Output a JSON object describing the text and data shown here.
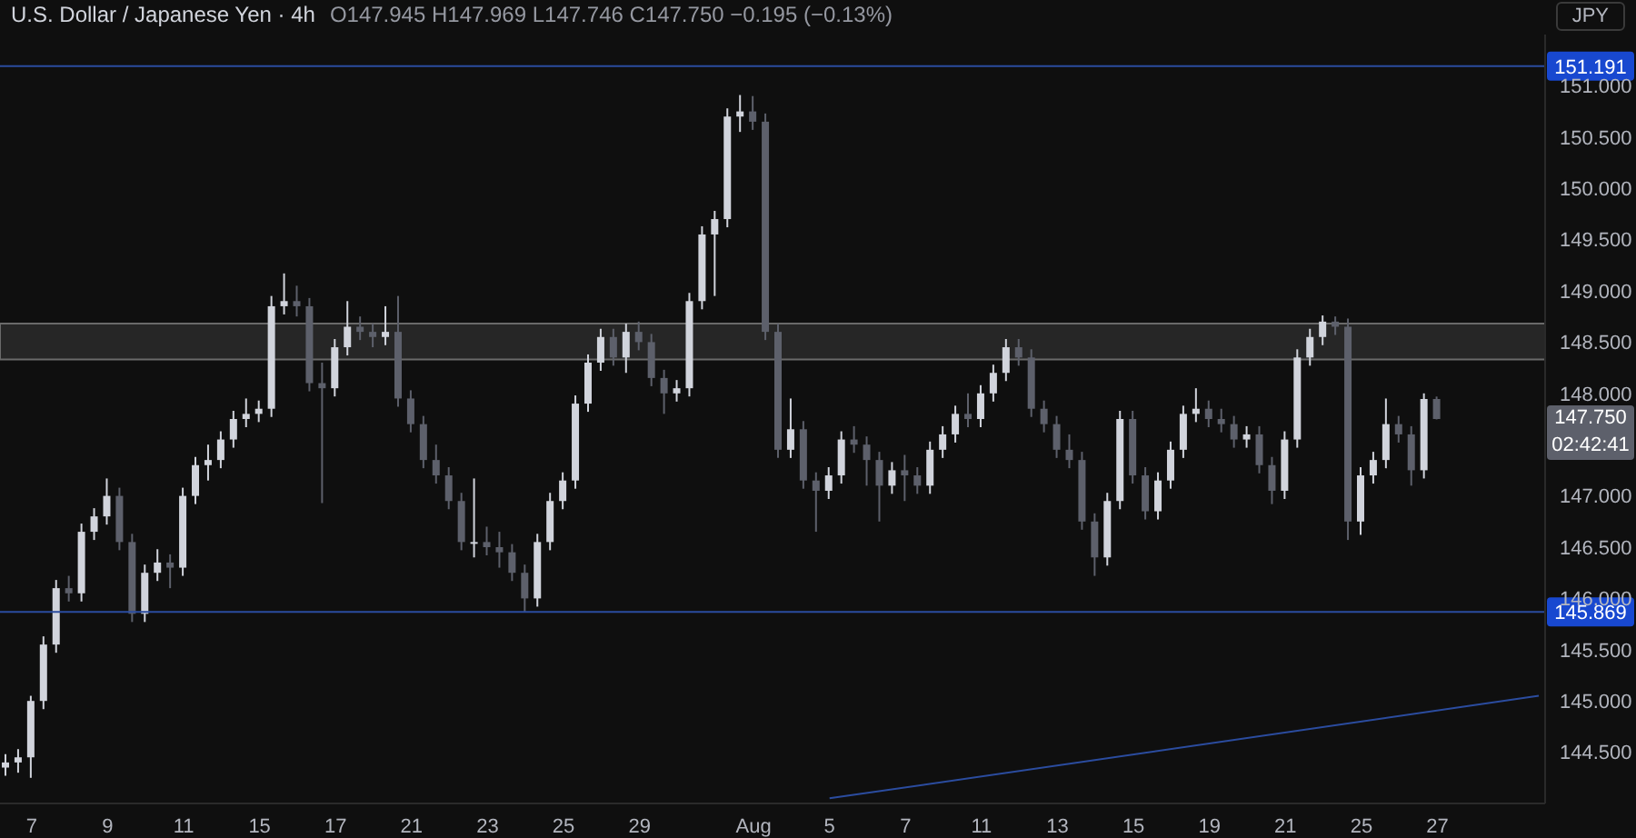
{
  "chart_data": {
    "type": "candlestick",
    "title": "U.S. Dollar / Japanese Yen · 4h",
    "subtitle": "O147.945 H147.969 L147.746 C147.750 −0.195 (−0.13%)",
    "categories": [
      null,
      null,
      "7",
      null,
      null,
      null,
      null,
      null,
      "9",
      null,
      null,
      null,
      null,
      null,
      "11",
      null,
      null,
      null,
      null,
      null,
      "15",
      null,
      null,
      null,
      null,
      null,
      "17",
      null,
      null,
      null,
      null,
      null,
      "21",
      null,
      null,
      null,
      null,
      null,
      "23",
      null,
      null,
      null,
      null,
      null,
      "25",
      null,
      null,
      null,
      null,
      null,
      "29",
      null,
      null,
      null,
      null,
      null,
      null,
      null,
      null,
      "Aug",
      null,
      null,
      null,
      null,
      null,
      "5",
      null,
      null,
      null,
      null,
      null,
      "7",
      null,
      null,
      null,
      null,
      null,
      "11",
      null,
      null,
      null,
      null,
      null,
      "13",
      null,
      null,
      null,
      null,
      null,
      "15",
      null,
      null,
      null,
      null,
      null,
      "19",
      null,
      null,
      null,
      null,
      null,
      "21",
      null,
      null,
      null,
      null,
      null,
      "25",
      null,
      null,
      null,
      null,
      null,
      "27",
      null,
      null,
      null,
      null,
      null,
      null,
      null,
      null
    ],
    "ohlc": [
      [
        144.35,
        144.48,
        144.27,
        144.4
      ],
      [
        144.4,
        144.53,
        144.3,
        144.45
      ],
      [
        144.45,
        145.05,
        144.25,
        145.0
      ],
      [
        145.0,
        145.63,
        144.92,
        145.55
      ],
      [
        145.55,
        146.18,
        145.47,
        146.1
      ],
      [
        146.1,
        146.22,
        145.97,
        146.05
      ],
      [
        146.05,
        146.73,
        145.97,
        146.65
      ],
      [
        146.65,
        146.88,
        146.57,
        146.8
      ],
      [
        146.8,
        147.17,
        146.72,
        147.0
      ],
      [
        147.0,
        147.08,
        146.47,
        146.55
      ],
      [
        146.55,
        146.63,
        145.77,
        145.85
      ],
      [
        145.85,
        146.33,
        145.77,
        146.25
      ],
      [
        146.25,
        146.48,
        146.17,
        146.35
      ],
      [
        146.35,
        146.43,
        146.1,
        146.3
      ],
      [
        146.3,
        147.08,
        146.22,
        147.0
      ],
      [
        147.0,
        147.38,
        146.92,
        147.3
      ],
      [
        147.3,
        147.5,
        147.15,
        147.35
      ],
      [
        147.35,
        147.63,
        147.27,
        147.55
      ],
      [
        147.55,
        147.83,
        147.47,
        147.75
      ],
      [
        147.75,
        147.95,
        147.67,
        147.8
      ],
      [
        147.8,
        147.93,
        147.72,
        147.85
      ],
      [
        147.85,
        148.95,
        147.77,
        148.85
      ],
      [
        148.85,
        149.17,
        148.77,
        148.9
      ],
      [
        148.9,
        149.05,
        148.75,
        148.85
      ],
      [
        148.85,
        148.93,
        148.02,
        148.1
      ],
      [
        148.1,
        148.3,
        146.93,
        148.05
      ],
      [
        148.05,
        148.53,
        147.97,
        148.45
      ],
      [
        148.45,
        148.9,
        148.37,
        148.65
      ],
      [
        148.65,
        148.75,
        148.52,
        148.6
      ],
      [
        148.6,
        148.68,
        148.45,
        148.55
      ],
      [
        148.55,
        148.85,
        148.47,
        148.6
      ],
      [
        148.6,
        148.95,
        147.87,
        147.95
      ],
      [
        147.95,
        148.03,
        147.62,
        147.7
      ],
      [
        147.7,
        147.78,
        147.27,
        147.35
      ],
      [
        147.35,
        147.5,
        147.12,
        147.2
      ],
      [
        147.2,
        147.28,
        146.87,
        146.95
      ],
      [
        146.95,
        147.03,
        146.47,
        146.55
      ],
      [
        146.55,
        147.17,
        146.4,
        146.55
      ],
      [
        146.55,
        146.7,
        146.42,
        146.5
      ],
      [
        146.5,
        146.65,
        146.3,
        146.45
      ],
      [
        146.45,
        146.53,
        146.17,
        146.25
      ],
      [
        146.25,
        146.33,
        145.87,
        146.0
      ],
      [
        146.0,
        146.63,
        145.92,
        146.55
      ],
      [
        146.55,
        147.03,
        146.47,
        146.95
      ],
      [
        146.95,
        147.23,
        146.87,
        147.15
      ],
      [
        147.15,
        147.98,
        147.07,
        147.9
      ],
      [
        147.9,
        148.38,
        147.82,
        148.3
      ],
      [
        148.3,
        148.63,
        148.22,
        148.55
      ],
      [
        148.55,
        148.63,
        148.27,
        148.35
      ],
      [
        148.35,
        148.68,
        148.2,
        148.6
      ],
      [
        148.6,
        148.7,
        148.42,
        148.5
      ],
      [
        148.5,
        148.58,
        148.07,
        148.15
      ],
      [
        148.15,
        148.23,
        147.8,
        148.0
      ],
      [
        148.0,
        148.13,
        147.92,
        148.05
      ],
      [
        148.05,
        148.98,
        147.97,
        148.9
      ],
      [
        148.9,
        149.63,
        148.82,
        149.55
      ],
      [
        149.55,
        149.78,
        148.95,
        149.7
      ],
      [
        149.7,
        150.78,
        149.62,
        150.7
      ],
      [
        150.7,
        150.91,
        150.55,
        150.75
      ],
      [
        150.75,
        150.9,
        150.57,
        150.65
      ],
      [
        150.65,
        150.73,
        148.52,
        148.6
      ],
      [
        148.6,
        148.68,
        147.37,
        147.45
      ],
      [
        147.45,
        147.95,
        147.37,
        147.65
      ],
      [
        147.65,
        147.73,
        147.07,
        147.15
      ],
      [
        147.15,
        147.23,
        146.65,
        147.05
      ],
      [
        147.05,
        147.28,
        146.97,
        147.2
      ],
      [
        147.2,
        147.63,
        147.12,
        147.55
      ],
      [
        147.55,
        147.68,
        147.42,
        147.5
      ],
      [
        147.5,
        147.58,
        147.1,
        147.35
      ],
      [
        147.35,
        147.43,
        146.75,
        147.1
      ],
      [
        147.1,
        147.33,
        147.02,
        147.25
      ],
      [
        147.25,
        147.4,
        146.95,
        147.2
      ],
      [
        147.2,
        147.28,
        147.02,
        147.1
      ],
      [
        147.1,
        147.53,
        147.02,
        147.45
      ],
      [
        147.45,
        147.68,
        147.37,
        147.6
      ],
      [
        147.6,
        147.88,
        147.52,
        147.8
      ],
      [
        147.8,
        148.0,
        147.67,
        147.75
      ],
      [
        147.75,
        148.08,
        147.67,
        148.0
      ],
      [
        148.0,
        148.28,
        147.92,
        148.2
      ],
      [
        148.2,
        148.53,
        148.12,
        148.45
      ],
      [
        148.45,
        148.53,
        148.27,
        148.35
      ],
      [
        148.35,
        148.43,
        147.77,
        147.85
      ],
      [
        147.85,
        147.93,
        147.62,
        147.7
      ],
      [
        147.7,
        147.78,
        147.37,
        147.45
      ],
      [
        147.45,
        147.6,
        147.27,
        147.35
      ],
      [
        147.35,
        147.43,
        146.67,
        146.75
      ],
      [
        146.75,
        146.83,
        146.22,
        146.4
      ],
      [
        146.4,
        147.03,
        146.32,
        146.95
      ],
      [
        146.95,
        147.83,
        146.87,
        147.75
      ],
      [
        147.75,
        147.83,
        147.12,
        147.2
      ],
      [
        147.2,
        147.28,
        146.77,
        146.85
      ],
      [
        146.85,
        147.23,
        146.77,
        147.15
      ],
      [
        147.15,
        147.53,
        147.07,
        147.45
      ],
      [
        147.45,
        147.88,
        147.37,
        147.8
      ],
      [
        147.8,
        148.05,
        147.72,
        147.85
      ],
      [
        147.85,
        147.93,
        147.67,
        147.75
      ],
      [
        147.75,
        147.85,
        147.62,
        147.7
      ],
      [
        147.7,
        147.78,
        147.47,
        147.55
      ],
      [
        147.55,
        147.68,
        147.47,
        147.6
      ],
      [
        147.6,
        147.68,
        147.22,
        147.3
      ],
      [
        147.3,
        147.38,
        146.92,
        147.05
      ],
      [
        147.05,
        147.63,
        146.97,
        147.55
      ],
      [
        147.55,
        148.43,
        147.47,
        148.35
      ],
      [
        148.35,
        148.63,
        148.27,
        148.55
      ],
      [
        148.55,
        148.76,
        148.47,
        148.7
      ],
      [
        148.7,
        148.75,
        148.57,
        148.65
      ],
      [
        148.65,
        148.73,
        146.57,
        146.75
      ],
      [
        146.75,
        147.28,
        146.62,
        147.2
      ],
      [
        147.2,
        147.43,
        147.12,
        147.35
      ],
      [
        147.35,
        147.95,
        147.27,
        147.7
      ],
      [
        147.7,
        147.78,
        147.52,
        147.6
      ],
      [
        147.6,
        147.68,
        147.1,
        147.25
      ],
      [
        147.25,
        148.0,
        147.17,
        147.945
      ],
      [
        147.945,
        147.969,
        147.746,
        147.75
      ],
      null,
      null,
      null,
      null,
      null,
      null,
      null,
      null
    ],
    "colors": [
      "#d1d4dc",
      "#d1d4dc",
      "#d1d4dc",
      "#d1d4dc",
      "#d1d4dc",
      "#5d606b",
      "#d1d4dc",
      "#d1d4dc",
      "#d1d4dc",
      "#5d606b",
      "#5d606b",
      "#d1d4dc",
      "#d1d4dc",
      "#5d606b",
      "#d1d4dc",
      "#d1d4dc",
      "#d1d4dc",
      "#d1d4dc",
      "#d1d4dc",
      "#d1d4dc",
      "#d1d4dc",
      "#d1d4dc",
      "#d1d4dc",
      "#5d606b",
      "#5d606b",
      "#5d606b",
      "#d1d4dc",
      "#d1d4dc",
      "#5d606b",
      "#5d606b",
      "#d1d4dc",
      "#5d606b",
      "#5d606b",
      "#5d606b",
      "#5d606b",
      "#5d606b",
      "#5d606b",
      "#d1d4dc",
      "#5d606b",
      "#5d606b",
      "#5d606b",
      "#5d606b",
      "#d1d4dc",
      "#d1d4dc",
      "#d1d4dc",
      "#d1d4dc",
      "#d1d4dc",
      "#d1d4dc",
      "#5d606b",
      "#d1d4dc",
      "#5d606b",
      "#5d606b",
      "#5d606b",
      "#d1d4dc",
      "#d1d4dc",
      "#d1d4dc",
      "#d1d4dc",
      "#d1d4dc",
      "#d1d4dc",
      "#5d606b",
      "#5d606b",
      "#5d606b",
      "#d1d4dc",
      "#5d606b",
      "#5d606b",
      "#d1d4dc",
      "#d1d4dc",
      "#5d606b",
      "#5d606b",
      "#5d606b",
      "#d1d4dc",
      "#5d606b",
      "#5d606b",
      "#d1d4dc",
      "#d1d4dc",
      "#d1d4dc",
      "#5d606b",
      "#d1d4dc",
      "#d1d4dc",
      "#d1d4dc",
      "#5d606b",
      "#5d606b",
      "#5d606b",
      "#5d606b",
      "#5d606b",
      "#5d606b",
      "#5d606b",
      "#d1d4dc",
      "#d1d4dc",
      "#5d606b",
      "#5d606b",
      "#d1d4dc",
      "#d1d4dc",
      "#d1d4dc",
      "#d1d4dc",
      "#5d606b",
      "#5d606b",
      "#5d606b",
      "#d1d4dc",
      "#5d606b",
      "#5d606b",
      "#d1d4dc",
      "#d1d4dc",
      "#d1d4dc",
      "#d1d4dc",
      "#5d606b",
      "#5d606b",
      "#d1d4dc",
      "#d1d4dc",
      "#d1d4dc",
      "#5d606b",
      "#5d606b",
      "#d1d4dc",
      "#5d606b",
      null,
      null,
      null,
      null,
      null,
      null,
      null,
      null
    ],
    "series": [
      {
        "type": "line",
        "color": "#2b4c9f",
        "values": [
          null,
          null,
          null,
          null,
          null,
          null,
          null,
          null,
          null,
          null,
          null,
          null,
          null,
          null,
          null,
          null,
          null,
          null,
          null,
          null,
          null,
          null,
          null,
          null,
          null,
          null,
          null,
          null,
          null,
          null,
          null,
          null,
          null,
          null,
          null,
          null,
          null,
          null,
          null,
          null,
          null,
          null,
          null,
          null,
          null,
          null,
          null,
          null,
          null,
          null,
          null,
          null,
          null,
          null,
          null,
          null,
          null,
          null,
          null,
          null,
          null,
          null,
          null,
          null,
          null,
          144.05,
          null,
          null,
          null,
          null,
          null,
          null,
          null,
          null,
          null,
          null,
          null,
          null,
          null,
          null,
          null,
          null,
          null,
          null,
          null,
          null,
          null,
          null,
          null,
          null,
          null,
          null,
          null,
          null,
          null,
          null,
          null,
          null,
          null,
          null,
          null,
          null,
          null,
          null,
          null,
          null,
          null,
          null,
          null,
          null,
          null,
          null,
          null,
          null,
          null,
          null,
          null,
          null,
          null,
          null,
          null,
          145.05
        ]
      }
    ],
    "ylim": [
      144.0,
      151.5
    ],
    "yticks": [
      {
        "value": 144.5,
        "label": "144.500"
      },
      {
        "value": 145,
        "label": "145.000"
      },
      {
        "value": 145.5,
        "label": "145.500"
      },
      {
        "value": 146,
        "label": "146.000"
      },
      {
        "value": 146.5,
        "label": "146.500"
      },
      {
        "value": 147,
        "label": "147.000"
      },
      {
        "value": 148,
        "label": "148.000"
      },
      {
        "value": 148.5,
        "label": "148.500"
      },
      {
        "value": 149,
        "label": "149.000"
      },
      {
        "value": 149.5,
        "label": "149.500"
      },
      {
        "value": 150,
        "label": "150.000"
      },
      {
        "value": 150.5,
        "label": "150.500"
      },
      {
        "value": 151,
        "label": "151.000"
      }
    ],
    "ref_lines": [
      {
        "axis": "y",
        "value": 151.191,
        "label": "151.191",
        "color": "#2b4c9f"
      },
      {
        "axis": "y",
        "value": 145.869,
        "label": "145.869",
        "color": "#2b4c9f"
      }
    ],
    "bands": [
      {
        "axis": "y",
        "from": 148.33,
        "to": 148.68,
        "color": "#262626"
      }
    ],
    "annotations": [
      "147.750",
      "02:42:41",
      "JPY"
    ]
  }
}
